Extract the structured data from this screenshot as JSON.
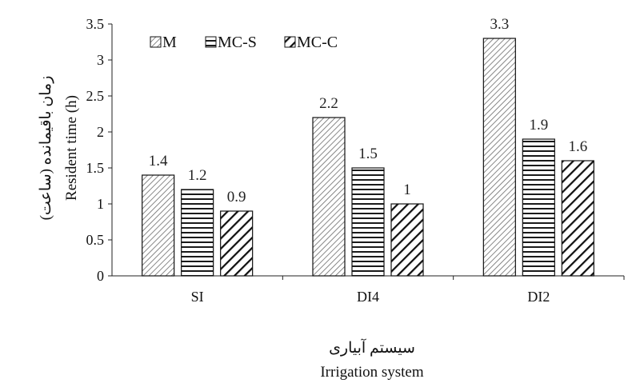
{
  "chart_data": {
    "type": "bar",
    "categories": [
      "SI",
      "DI4",
      "DI2"
    ],
    "series": [
      {
        "name": "M",
        "values": [
          1.4,
          2.2,
          3.3
        ],
        "labels": [
          "1.4",
          "2.2",
          "3.3"
        ],
        "pattern": "diag-thin"
      },
      {
        "name": "MC-S",
        "values": [
          1.2,
          1.5,
          1.9
        ],
        "labels": [
          "1.2",
          "1.5",
          "1.9"
        ],
        "pattern": "horizontal"
      },
      {
        "name": "MC-C",
        "values": [
          0.9,
          1.0,
          1.6
        ],
        "labels": [
          "0.9",
          "1",
          "1.6"
        ],
        "pattern": "diag-thick"
      }
    ],
    "ylim": [
      0,
      3.5
    ],
    "yticks": [
      "0",
      "0.5",
      "1",
      "1.5",
      "2",
      "2.5",
      "3",
      "3.5"
    ],
    "ylabel": "Resident time (h)",
    "ylabel_fa": "زمان باقیمانده (ساعت)",
    "xlabel": "Irrigation system",
    "xlabel_fa": "سیستم آبیاری",
    "legend_position": "top-left",
    "grid": false
  }
}
